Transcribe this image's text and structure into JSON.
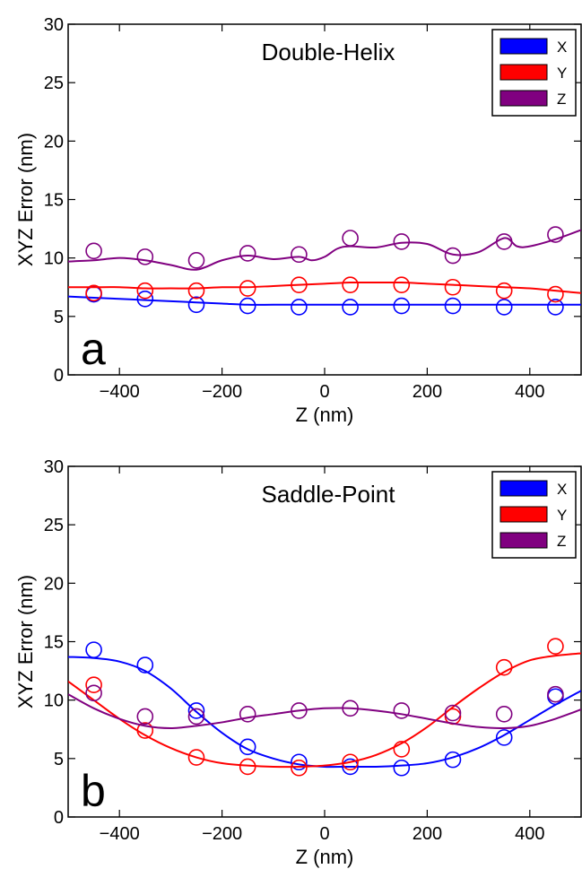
{
  "chart_data": [
    {
      "type": "line",
      "panel_label": "a",
      "title": "Double-Helix",
      "xlabel": "Z (nm)",
      "ylabel": "XYZ Error (nm)",
      "xlim": [
        -500,
        500
      ],
      "ylim": [
        0,
        30
      ],
      "xticks": [
        -400,
        -200,
        0,
        200,
        400
      ],
      "xtick_labels": [
        "−400",
        "−200",
        "0",
        "200",
        "400"
      ],
      "yticks": [
        0,
        5,
        10,
        15,
        20,
        25,
        30
      ],
      "ytick_labels": [
        "0",
        "5",
        "10",
        "15",
        "20",
        "25",
        "30"
      ],
      "grid": false,
      "legend_position": "top-right",
      "points_x": [
        -450,
        -350,
        -250,
        -150,
        -50,
        50,
        150,
        250,
        350,
        450
      ],
      "series": [
        {
          "name": "X",
          "color": "#0000ff",
          "points": [
            6.9,
            6.5,
            6.0,
            5.9,
            5.8,
            5.8,
            5.9,
            5.9,
            5.8,
            5.8
          ],
          "curve_x": [
            -500,
            -450,
            -400,
            -350,
            -300,
            -250,
            -200,
            -150,
            -100,
            -50,
            0,
            50,
            100,
            150,
            200,
            250,
            300,
            350,
            400,
            450,
            500
          ],
          "curve_y": [
            6.7,
            6.6,
            6.5,
            6.4,
            6.3,
            6.2,
            6.1,
            6.0,
            6.0,
            6.0,
            6.0,
            6.0,
            6.0,
            6.0,
            6.0,
            6.0,
            6.0,
            6.0,
            6.0,
            6.0,
            6.0
          ]
        },
        {
          "name": "Y",
          "color": "#ff0000",
          "points": [
            7.0,
            7.2,
            7.2,
            7.4,
            7.7,
            7.7,
            7.7,
            7.5,
            7.2,
            6.9
          ],
          "curve_x": [
            -500,
            -450,
            -400,
            -350,
            -300,
            -250,
            -200,
            -150,
            -100,
            -50,
            0,
            50,
            100,
            150,
            200,
            250,
            300,
            350,
            400,
            450,
            500
          ],
          "curve_y": [
            7.5,
            7.5,
            7.5,
            7.4,
            7.4,
            7.4,
            7.5,
            7.5,
            7.6,
            7.7,
            7.8,
            7.9,
            7.9,
            7.9,
            7.8,
            7.7,
            7.6,
            7.5,
            7.4,
            7.2,
            7.0
          ]
        },
        {
          "name": "Z",
          "color": "#800080",
          "points": [
            10.6,
            10.1,
            9.8,
            10.4,
            10.3,
            11.7,
            11.4,
            10.2,
            11.4,
            12.0
          ],
          "curve_x": [
            -500,
            -450,
            -400,
            -350,
            -300,
            -250,
            -200,
            -150,
            -100,
            -50,
            -25,
            0,
            25,
            50,
            100,
            150,
            200,
            250,
            300,
            350,
            375,
            400,
            450,
            500
          ],
          "curve_y": [
            9.7,
            9.8,
            10.0,
            9.8,
            9.4,
            9.0,
            9.8,
            10.2,
            9.9,
            10.1,
            9.8,
            10.1,
            10.8,
            11.0,
            10.9,
            11.3,
            11.2,
            10.3,
            10.5,
            11.7,
            11.0,
            11.0,
            11.6,
            12.4
          ]
        }
      ]
    },
    {
      "type": "line",
      "panel_label": "b",
      "title": "Saddle-Point",
      "xlabel": "Z (nm)",
      "ylabel": "XYZ Error (nm)",
      "xlim": [
        -500,
        500
      ],
      "ylim": [
        0,
        30
      ],
      "xticks": [
        -400,
        -200,
        0,
        200,
        400
      ],
      "xtick_labels": [
        "−400",
        "−200",
        "0",
        "200",
        "400"
      ],
      "yticks": [
        0,
        5,
        10,
        15,
        20,
        25,
        30
      ],
      "ytick_labels": [
        "0",
        "5",
        "10",
        "15",
        "20",
        "25",
        "30"
      ],
      "grid": false,
      "legend_position": "top-right",
      "points_x": [
        -450,
        -350,
        -250,
        -150,
        -50,
        50,
        150,
        250,
        350,
        450
      ],
      "series": [
        {
          "name": "X",
          "color": "#0000ff",
          "points": [
            14.3,
            13.0,
            9.1,
            6.0,
            4.7,
            4.3,
            4.2,
            4.9,
            6.8,
            10.3
          ],
          "curve_x": [
            -500,
            -450,
            -400,
            -350,
            -300,
            -250,
            -200,
            -150,
            -100,
            -50,
            0,
            50,
            100,
            150,
            200,
            250,
            300,
            350,
            400,
            450,
            500
          ],
          "curve_y": [
            13.7,
            13.6,
            13.3,
            12.5,
            11.0,
            9.0,
            7.2,
            5.8,
            5.0,
            4.5,
            4.3,
            4.3,
            4.3,
            4.4,
            4.6,
            5.1,
            5.9,
            7.0,
            8.3,
            9.6,
            10.8
          ]
        },
        {
          "name": "Y",
          "color": "#ff0000",
          "points": [
            11.3,
            7.4,
            5.1,
            4.3,
            4.2,
            4.7,
            5.8,
            8.6,
            12.8,
            14.6
          ],
          "curve_x": [
            -500,
            -450,
            -400,
            -350,
            -300,
            -250,
            -200,
            -150,
            -100,
            -50,
            0,
            50,
            100,
            150,
            200,
            250,
            300,
            350,
            400,
            450,
            500
          ],
          "curve_y": [
            11.6,
            10.0,
            8.4,
            7.0,
            5.9,
            5.1,
            4.6,
            4.4,
            4.3,
            4.3,
            4.4,
            4.7,
            5.3,
            6.3,
            7.7,
            9.4,
            11.0,
            12.4,
            13.4,
            13.8,
            14.0
          ]
        },
        {
          "name": "Z",
          "color": "#800080",
          "points": [
            10.6,
            8.6,
            8.6,
            8.8,
            9.1,
            9.3,
            9.1,
            8.9,
            8.8,
            10.5
          ],
          "curve_x": [
            -500,
            -450,
            -400,
            -350,
            -300,
            -250,
            -200,
            -150,
            -100,
            -50,
            0,
            50,
            100,
            150,
            200,
            250,
            300,
            350,
            400,
            450,
            500
          ],
          "curve_y": [
            10.5,
            9.3,
            8.4,
            7.8,
            7.6,
            7.8,
            8.1,
            8.5,
            8.8,
            9.1,
            9.3,
            9.3,
            9.1,
            8.8,
            8.4,
            8.0,
            7.7,
            7.6,
            7.8,
            8.4,
            9.2
          ]
        }
      ]
    }
  ]
}
